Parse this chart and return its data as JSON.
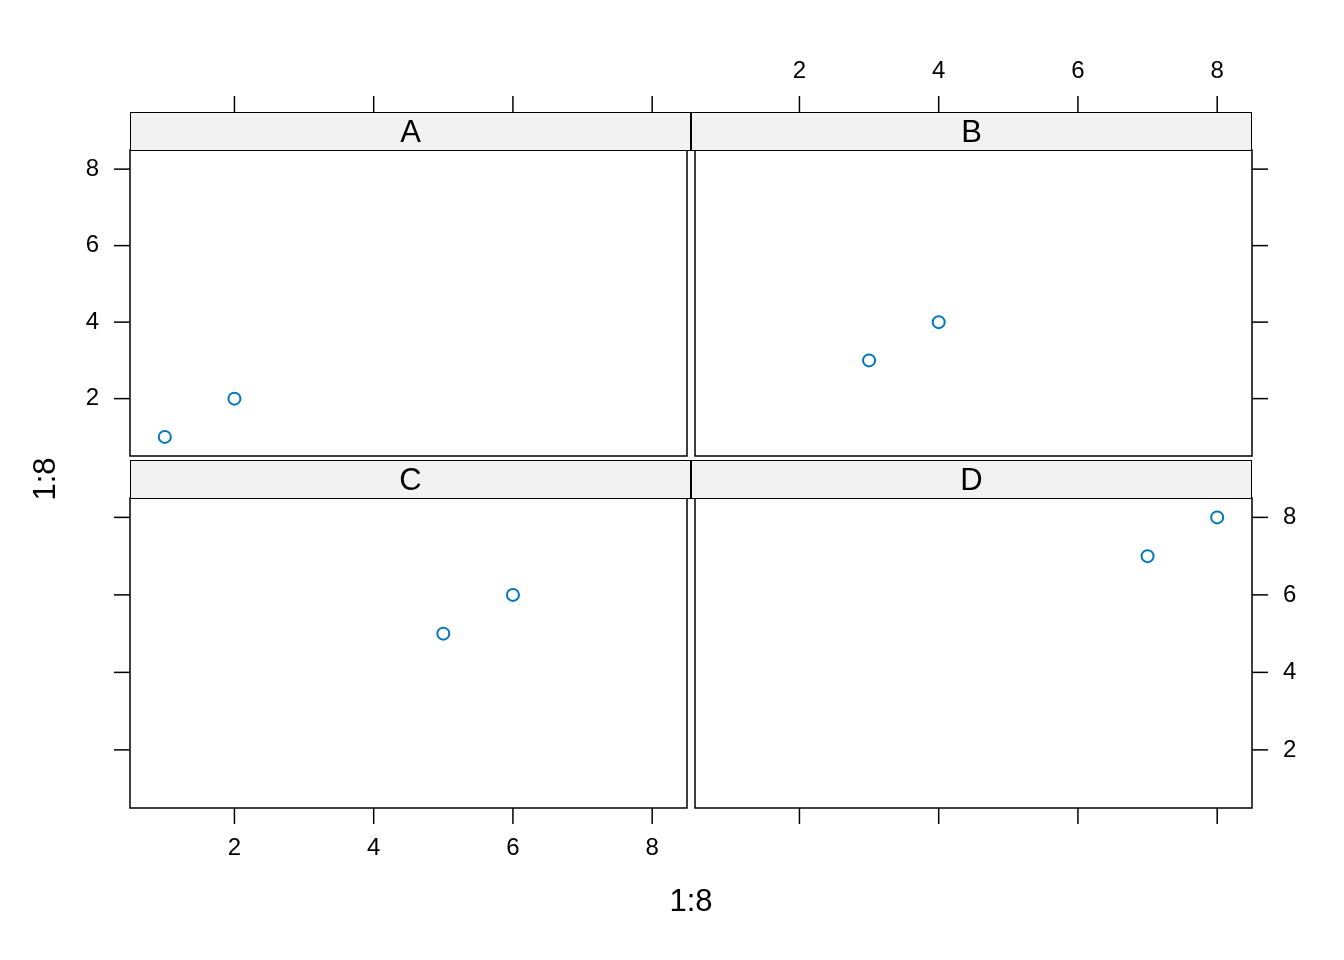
{
  "chart_data": [
    {
      "type": "scatter",
      "title": "A",
      "ylabel": "1:8",
      "x": [
        1,
        2
      ],
      "series": [
        {
          "color": "#0077bb",
          "values": [
            1,
            2
          ]
        }
      ],
      "xlim": [
        0.5,
        8.5
      ],
      "xticks": [
        2,
        4,
        6,
        8
      ],
      "ylim": [
        0.5,
        8.5
      ],
      "yticks": [
        2,
        4,
        6,
        8
      ],
      "tick_labels": "y",
      "marker": "circle"
    },
    {
      "type": "scatter",
      "title": "B",
      "x": [
        3,
        4
      ],
      "series": [
        {
          "color": "#0077bb",
          "values": [
            3,
            4
          ]
        }
      ],
      "xlim": [
        0.5,
        8.5
      ],
      "xticks": [
        2,
        4,
        6,
        8
      ],
      "ylim": [
        0.5,
        8.5
      ],
      "yticks": [
        2,
        4,
        6,
        8
      ],
      "tick_labels": "x",
      "marker": "circle"
    },
    {
      "type": "scatter",
      "title": "C",
      "xlabel": "1:8",
      "x": [
        5,
        6
      ],
      "series": [
        {
          "color": "#0077bb",
          "values": [
            5,
            6
          ]
        }
      ],
      "xlim": [
        0.5,
        8.5
      ],
      "xticks": [
        2,
        4,
        6,
        8
      ],
      "ylim": [
        0.5,
        8.5
      ],
      "yticks": [
        2,
        4,
        6,
        8
      ],
      "tick_labels": "x",
      "marker": "circle"
    },
    {
      "type": "scatter",
      "title": "D",
      "x": [
        7,
        8
      ],
      "series": [
        {
          "color": "#0077bb",
          "values": [
            7,
            8
          ]
        }
      ],
      "xlim": [
        0.5,
        8.5
      ],
      "xticks": [
        2,
        4,
        6,
        8
      ],
      "ylim": [
        0.5,
        8.5
      ],
      "yticks": [
        2,
        4,
        6,
        8
      ],
      "tick_labels": "y",
      "marker": "circle"
    }
  ]
}
